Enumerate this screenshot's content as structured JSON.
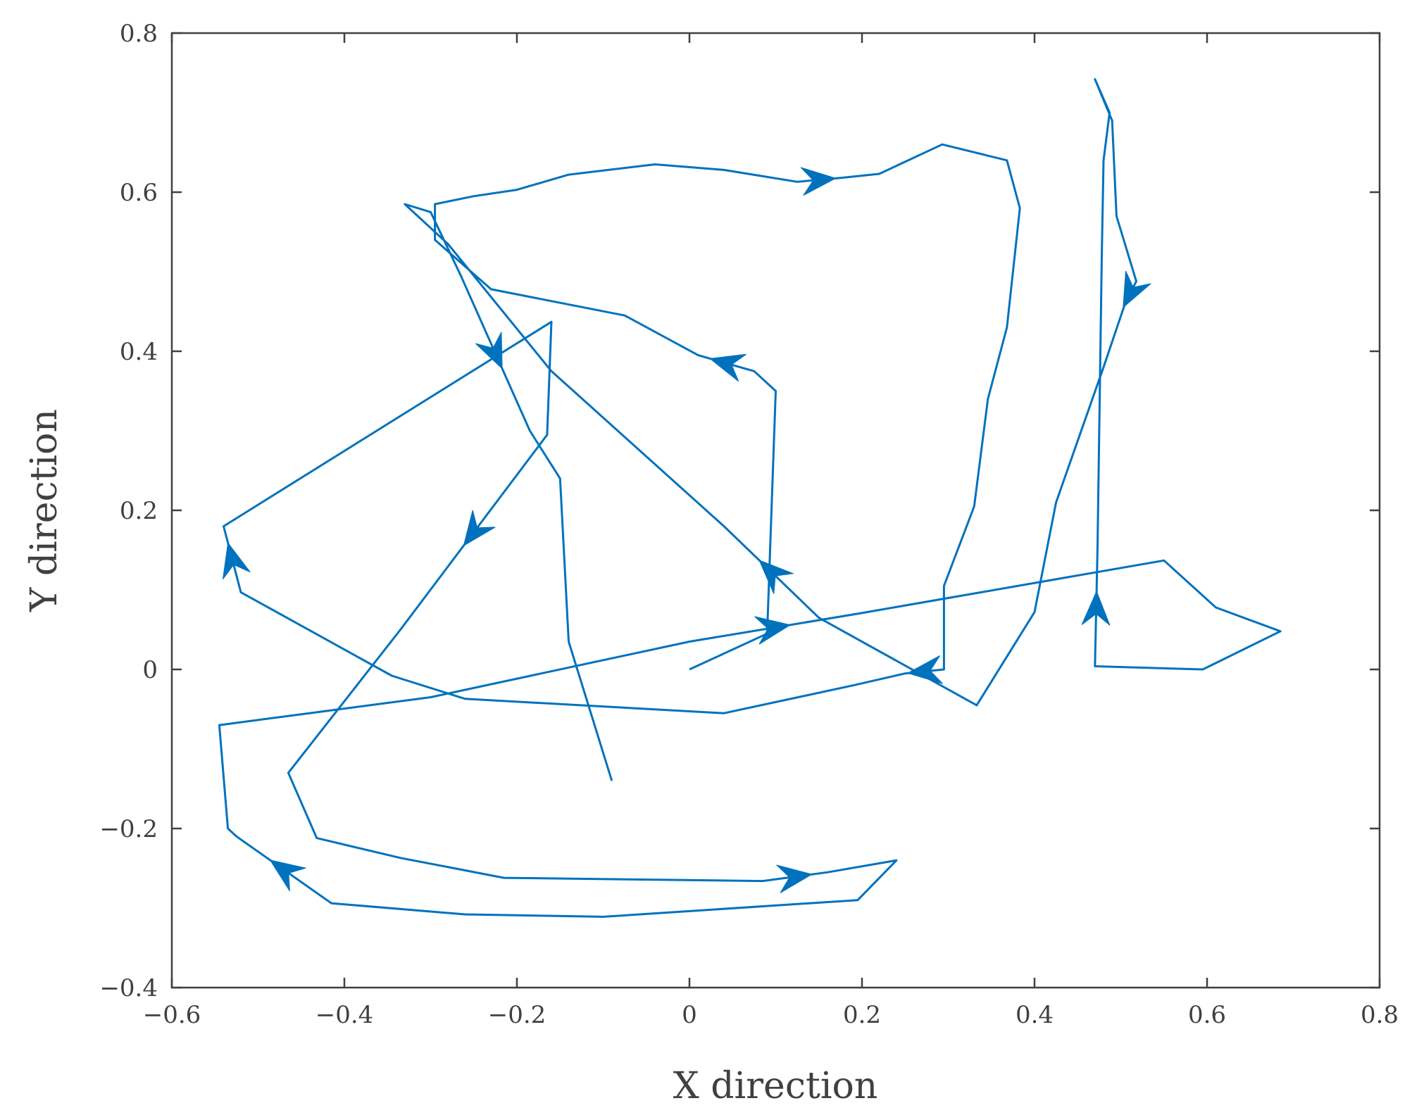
{
  "chart_data": {
    "type": "line",
    "title": "",
    "xlabel": "X direction",
    "ylabel": "Y direction",
    "xlim": [
      -0.6,
      0.8
    ],
    "ylim": [
      -0.4,
      0.8
    ],
    "grid": false,
    "x_ticks": [
      -0.6,
      -0.4,
      -0.2,
      0,
      0.2,
      0.4,
      0.6,
      0.8
    ],
    "x_tick_labels": [
      "−0.6",
      "−0.4",
      "−0.2",
      "0",
      "0.2",
      "0.4",
      "0.6",
      "0.8"
    ],
    "y_ticks": [
      -0.4,
      -0.2,
      0,
      0.2,
      0.4,
      0.6,
      0.8
    ],
    "y_tick_labels": [
      "−0.4",
      "−0.2",
      "0",
      "0.2",
      "0.4",
      "0.6",
      "0.8"
    ],
    "colors": {
      "series": "#0072BD",
      "axis": "#404040"
    },
    "series": [
      {
        "points": [
          [
            0.0,
            0.0
          ],
          [
            0.05,
            0.025
          ],
          [
            0.09,
            0.045
          ],
          [
            0.1,
            0.35
          ],
          [
            0.075,
            0.375
          ],
          [
            0.01,
            0.395
          ],
          [
            -0.075,
            0.445
          ],
          [
            -0.23,
            0.478
          ],
          [
            -0.295,
            0.54
          ],
          [
            -0.295,
            0.585
          ],
          [
            -0.25,
            0.595
          ],
          [
            -0.2,
            0.603
          ],
          [
            -0.14,
            0.622
          ],
          [
            -0.04,
            0.635
          ],
          [
            0.04,
            0.628
          ],
          [
            0.125,
            0.613
          ],
          [
            0.175,
            0.618
          ],
          [
            0.22,
            0.623
          ],
          [
            0.293,
            0.66
          ],
          [
            0.368,
            0.64
          ],
          [
            0.383,
            0.58
          ],
          [
            0.368,
            0.43
          ],
          [
            0.346,
            0.34
          ],
          [
            0.33,
            0.205
          ],
          [
            0.295,
            0.105
          ],
          [
            0.295,
            0.0
          ],
          [
            0.25,
            -0.005
          ],
          [
            0.19,
            -0.02
          ],
          [
            0.04,
            -0.055
          ],
          [
            -0.26,
            -0.037
          ],
          [
            -0.345,
            -0.008
          ],
          [
            -0.52,
            0.097
          ],
          [
            -0.54,
            0.18
          ],
          [
            -0.16,
            0.437
          ],
          [
            -0.165,
            0.295
          ],
          [
            -0.335,
            0.05
          ],
          [
            -0.465,
            -0.13
          ],
          [
            -0.432,
            -0.212
          ],
          [
            -0.335,
            -0.237
          ],
          [
            -0.215,
            -0.262
          ],
          [
            0.085,
            -0.266
          ],
          [
            0.16,
            -0.255
          ],
          [
            0.24,
            -0.24
          ],
          [
            0.195,
            -0.29
          ],
          [
            -0.1,
            -0.311
          ],
          [
            -0.26,
            -0.308
          ],
          [
            -0.415,
            -0.294
          ],
          [
            -0.525,
            -0.21
          ],
          [
            -0.535,
            -0.2
          ],
          [
            -0.545,
            -0.07
          ],
          [
            -0.3,
            -0.035
          ],
          [
            0.0,
            0.035
          ],
          [
            0.195,
            0.07
          ],
          [
            0.55,
            0.137
          ],
          [
            0.61,
            0.078
          ],
          [
            0.685,
            0.048
          ],
          [
            0.595,
            0.0
          ],
          [
            0.47,
            0.004
          ],
          [
            0.473,
            0.15
          ],
          [
            0.478,
            0.52
          ],
          [
            0.48,
            0.64
          ],
          [
            0.487,
            0.7
          ],
          [
            0.47,
            0.742
          ],
          [
            0.49,
            0.69
          ],
          [
            0.495,
            0.57
          ],
          [
            0.518,
            0.488
          ],
          [
            0.505,
            0.46
          ],
          [
            0.48,
            0.38
          ],
          [
            0.425,
            0.21
          ],
          [
            0.4,
            0.072
          ],
          [
            0.333,
            -0.045
          ],
          [
            0.15,
            0.065
          ],
          [
            0.04,
            0.18
          ],
          [
            -0.16,
            0.375
          ],
          [
            -0.28,
            0.535
          ],
          [
            -0.33,
            0.585
          ],
          [
            -0.3,
            0.575
          ],
          [
            -0.265,
            0.495
          ],
          [
            -0.185,
            0.3
          ],
          [
            -0.15,
            0.24
          ],
          [
            -0.14,
            0.035
          ],
          [
            -0.09,
            -0.14
          ]
        ],
        "arrows": [
          [
            0.075,
            0.375,
            0.01,
            0.395
          ],
          [
            0.125,
            0.613,
            0.175,
            0.618
          ],
          [
            0.295,
            0.0,
            0.25,
            -0.005
          ],
          [
            -0.52,
            0.097,
            -0.54,
            0.18
          ],
          [
            -0.165,
            0.295,
            -0.335,
            0.05
          ],
          [
            0.085,
            -0.266,
            0.16,
            -0.255
          ],
          [
            -0.415,
            -0.294,
            -0.525,
            -0.21
          ],
          [
            0.0,
            0.035,
            0.195,
            0.07
          ],
          [
            0.47,
            0.004,
            0.473,
            0.15
          ],
          [
            0.518,
            0.488,
            0.505,
            0.46
          ],
          [
            0.15,
            0.065,
            0.04,
            0.18
          ],
          [
            -0.265,
            0.495,
            -0.185,
            0.3
          ]
        ]
      }
    ]
  }
}
